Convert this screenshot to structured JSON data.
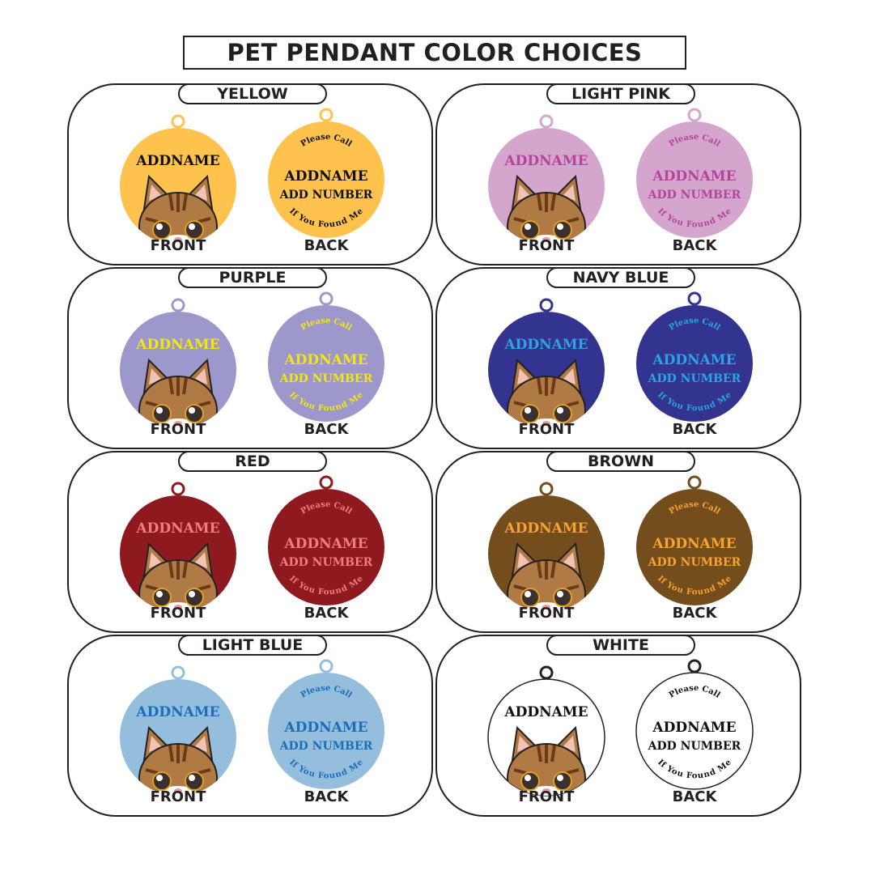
{
  "title": "PET PENDANT COLOR CHOICES",
  "side_labels": {
    "front": "FRONT",
    "back": "BACK"
  },
  "pendant_text": {
    "name": "ADDNAME",
    "number": "ADD NUMBER",
    "top_arc": "Please Call",
    "bottom_arc": "If You Found Me"
  },
  "variants": [
    {
      "label": "YELLOW",
      "color": "#FFC24D",
      "text_color": "#111111"
    },
    {
      "label": "LIGHT PINK",
      "color": "#D4A6CD",
      "text_color": "#B5449A"
    },
    {
      "label": "PURPLE",
      "color": "#9C98CC",
      "text_color": "#F4E614"
    },
    {
      "label": "NAVY BLUE",
      "color": "#33348F",
      "text_color": "#2CA3E2"
    },
    {
      "label": "RED",
      "color": "#8E1A20",
      "text_color": "#F27C7C"
    },
    {
      "label": "BROWN",
      "color": "#744D1C",
      "text_color": "#F7A233"
    },
    {
      "label": "LIGHT BLUE",
      "color": "#94BEDB",
      "text_color": "#1A6FB8"
    },
    {
      "label": "WHITE",
      "color": "#FFFFFF",
      "text_color": "#111111"
    }
  ]
}
